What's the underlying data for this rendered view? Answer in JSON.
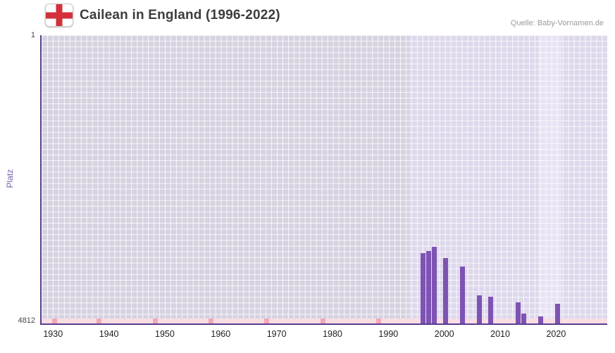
{
  "header": {
    "title": "Cailean in England (1996-2022)",
    "source": "Quelle: Baby-Vornamen.de",
    "flag_cross_color": "#d3303a",
    "flag_field_color": "#ffffff"
  },
  "chart_data": {
    "type": "bar",
    "title": "Cailean in England (1996-2022)",
    "source": "Quelle: Baby-Vornamen.de",
    "xlabel": "",
    "ylabel": "Platz",
    "y_axis": {
      "min": 1,
      "max": 4812,
      "inverted": true,
      "top_label": "1",
      "bottom_label": "4812"
    },
    "x_axis": {
      "min": 1927.7,
      "max": 2028.9,
      "ticks": [
        1930,
        1940,
        1950,
        1960,
        1970,
        1980,
        1990,
        2000,
        2010,
        2020
      ]
    },
    "series": [
      {
        "name": "Platz",
        "color": "#7e53b4",
        "points": [
          {
            "year": 1996,
            "rank": 3640
          },
          {
            "year": 1997,
            "rank": 3600
          },
          {
            "year": 1998,
            "rank": 3530
          },
          {
            "year": 2000,
            "rank": 3720
          },
          {
            "year": 2003,
            "rank": 3860
          },
          {
            "year": 2006,
            "rank": 4340
          },
          {
            "year": 2008,
            "rank": 4370
          },
          {
            "year": 2013,
            "rank": 4460
          },
          {
            "year": 2014,
            "rank": 4650
          },
          {
            "year": 2017,
            "rank": 4700
          },
          {
            "year": 2020,
            "rank": 4480
          }
        ]
      }
    ],
    "regions": [
      {
        "from": 1927.7,
        "to": 1993.5,
        "color": "#d7d2e0"
      },
      {
        "from": 1993.5,
        "to": 2028.9,
        "color": "#ded8ec"
      },
      {
        "from": 2016.5,
        "to": 2020.7,
        "color": "#e8e2f4"
      }
    ],
    "baseline_strip": {
      "color": "#f8dee2",
      "mark_color": "#f0a9b3",
      "mark_years": [
        1930,
        1938,
        1948,
        1958,
        1968,
        1978,
        1988
      ]
    },
    "grid": {
      "show": true,
      "cell_w": 7.955,
      "cell_h": 8.1,
      "line_color": "rgba(255,255,255,0.8)"
    }
  }
}
